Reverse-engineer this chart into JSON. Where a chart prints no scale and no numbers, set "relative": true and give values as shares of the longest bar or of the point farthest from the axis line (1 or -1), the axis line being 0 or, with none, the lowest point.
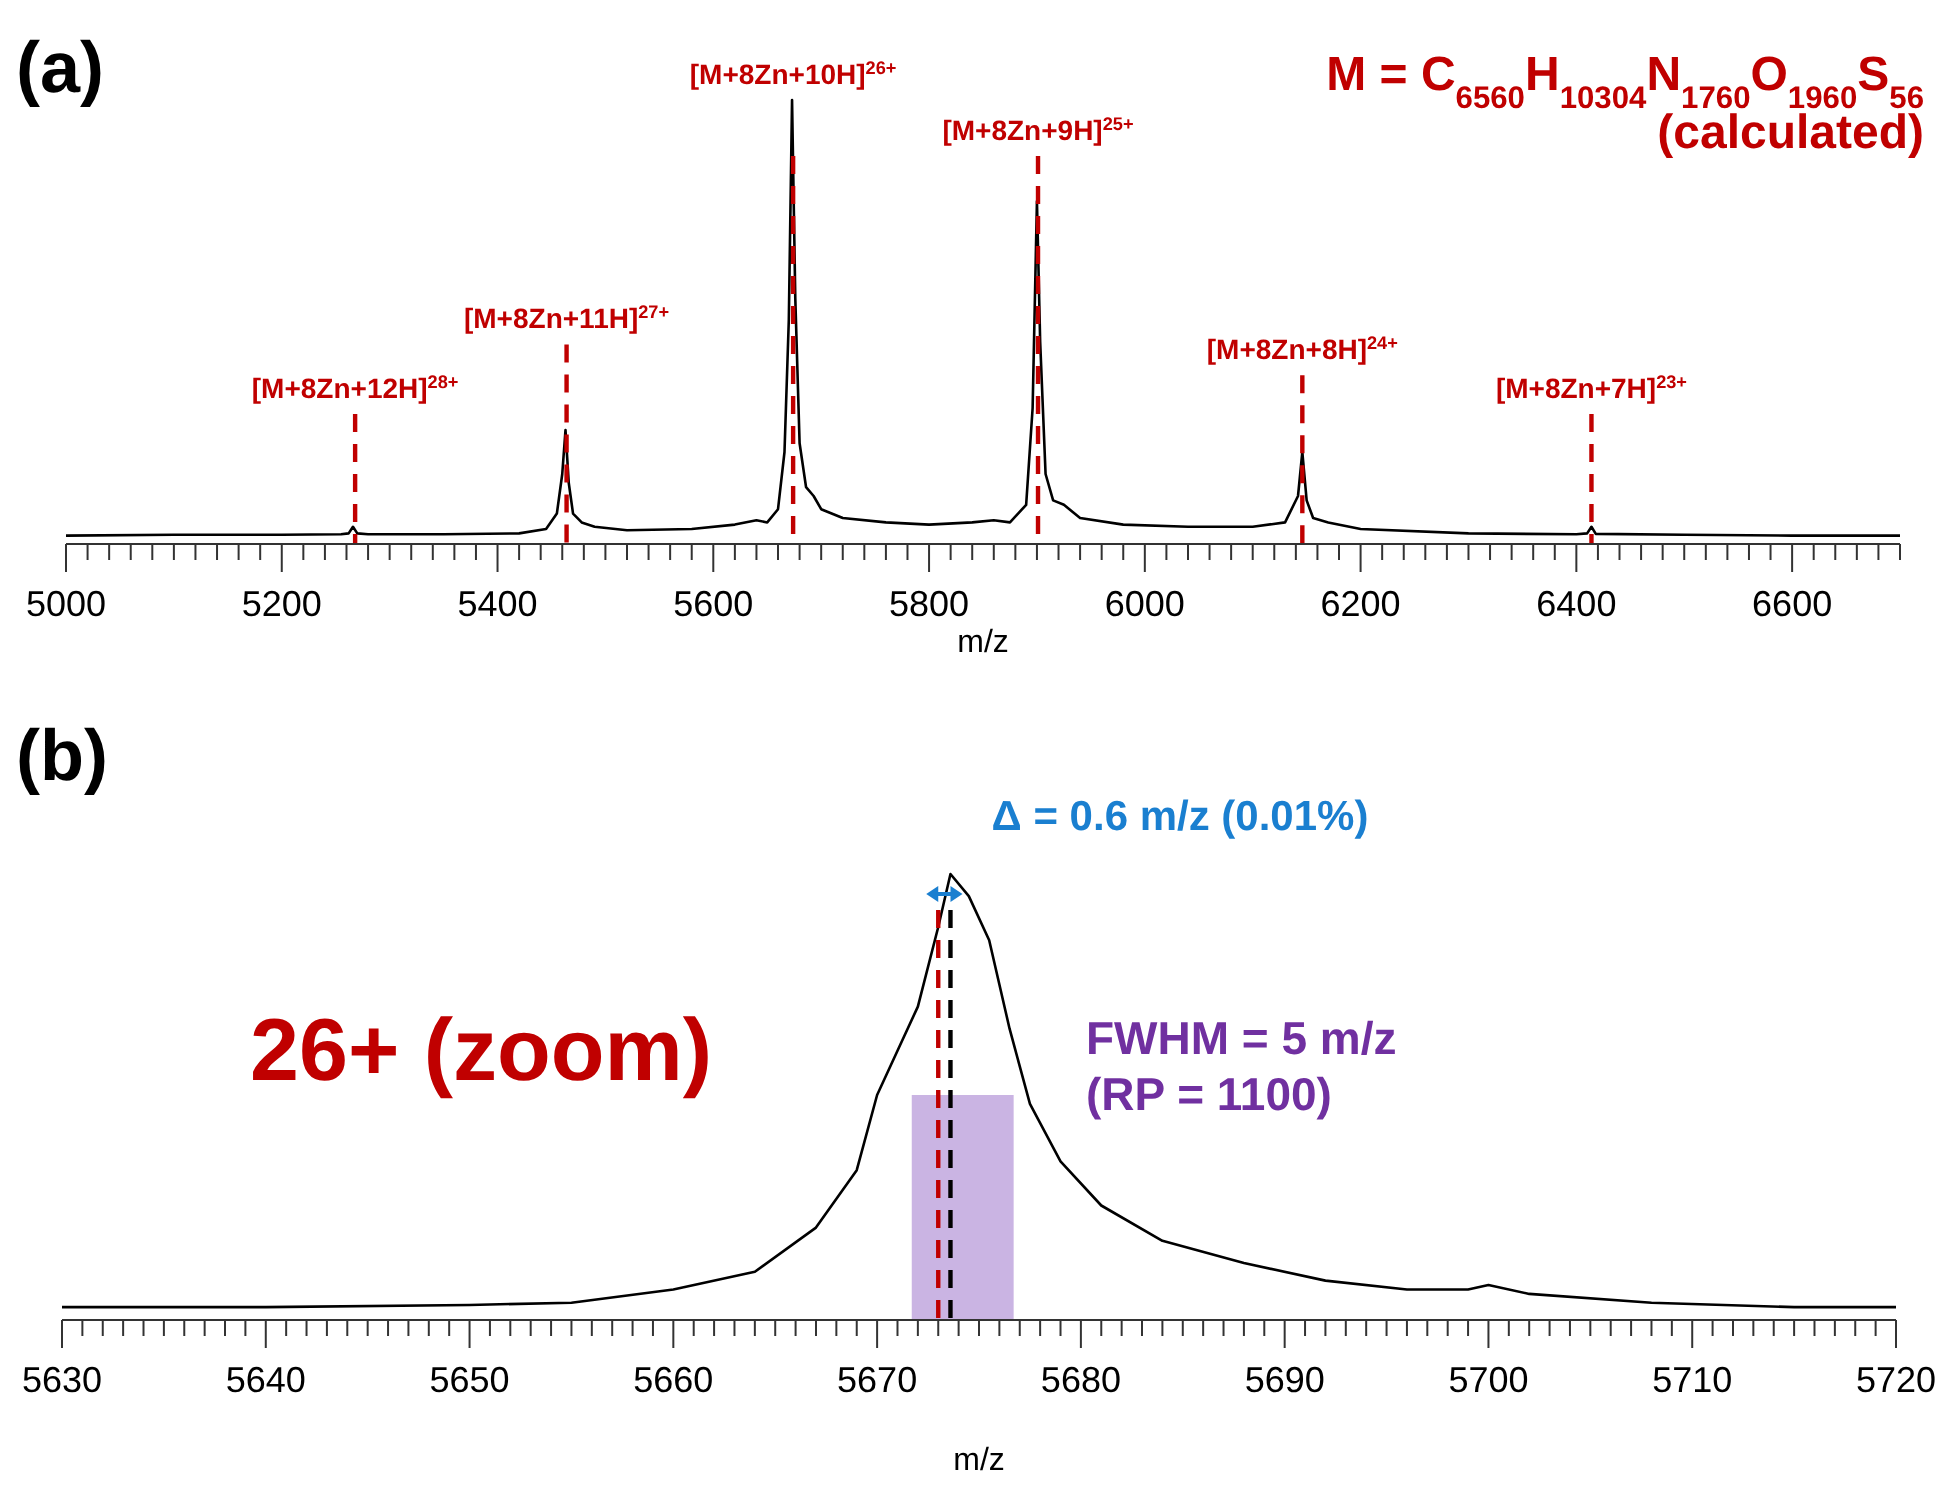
{
  "chart_data": [
    {
      "type": "line",
      "title": "(a)",
      "xlabel": "m/z",
      "relative": true,
      "tick_labels": "x",
      "grid": false,
      "marker": "none",
      "line_style": "solid",
      "annotations": [
        "M = C$_{6560}$H$_{10304}$N$_{1760}$O$_{1960}$S$_{56}$",
        "(calculated)"
      ],
      "xlim": [
        5000,
        6700
      ],
      "xticks": [
        5000,
        {
          "value": 5020,
          "label": null
        },
        {
          "value": 5040,
          "label": null
        },
        {
          "value": 5060,
          "label": null
        },
        {
          "value": 5080,
          "label": null
        },
        {
          "value": 5100,
          "label": null
        },
        {
          "value": 5120,
          "label": null
        },
        {
          "value": 5140,
          "label": null
        },
        {
          "value": 5160,
          "label": null
        },
        {
          "value": 5180,
          "label": null
        },
        5200,
        {
          "value": 5220,
          "label": null
        },
        {
          "value": 5240,
          "label": null
        },
        {
          "value": 5260,
          "label": null
        },
        {
          "value": 5280,
          "label": null
        },
        {
          "value": 5300,
          "label": null
        },
        {
          "value": 5320,
          "label": null
        },
        {
          "value": 5340,
          "label": null
        },
        {
          "value": 5360,
          "label": null
        },
        {
          "value": 5380,
          "label": null
        },
        5400,
        {
          "value": 5420,
          "label": null
        },
        {
          "value": 5440,
          "label": null
        },
        {
          "value": 5460,
          "label": null
        },
        {
          "value": 5480,
          "label": null
        },
        {
          "value": 5500,
          "label": null
        },
        {
          "value": 5520,
          "label": null
        },
        {
          "value": 5540,
          "label": null
        },
        {
          "value": 5560,
          "label": null
        },
        {
          "value": 5580,
          "label": null
        },
        5600,
        {
          "value": 5620,
          "label": null
        },
        {
          "value": 5640,
          "label": null
        },
        {
          "value": 5660,
          "label": null
        },
        {
          "value": 5680,
          "label": null
        },
        {
          "value": 5700,
          "label": null
        },
        {
          "value": 5720,
          "label": null
        },
        {
          "value": 5740,
          "label": null
        },
        {
          "value": 5760,
          "label": null
        },
        {
          "value": 5780,
          "label": null
        },
        5800,
        {
          "value": 5820,
          "label": null
        },
        {
          "value": 5840,
          "label": null
        },
        {
          "value": 5860,
          "label": null
        },
        {
          "value": 5880,
          "label": null
        },
        {
          "value": 5900,
          "label": null
        },
        {
          "value": 5920,
          "label": null
        },
        {
          "value": 5940,
          "label": null
        },
        {
          "value": 5960,
          "label": null
        },
        {
          "value": 5980,
          "label": null
        },
        6000,
        {
          "value": 6020,
          "label": null
        },
        {
          "value": 6040,
          "label": null
        },
        {
          "value": 6060,
          "label": null
        },
        {
          "value": 6080,
          "label": null
        },
        {
          "value": 6100,
          "label": null
        },
        {
          "value": 6120,
          "label": null
        },
        {
          "value": 6140,
          "label": null
        },
        {
          "value": 6160,
          "label": null
        },
        {
          "value": 6180,
          "label": null
        },
        6200,
        {
          "value": 6220,
          "label": null
        },
        {
          "value": 6240,
          "label": null
        },
        {
          "value": 6260,
          "label": null
        },
        {
          "value": 6280,
          "label": null
        },
        {
          "value": 6300,
          "label": null
        },
        {
          "value": 6320,
          "label": null
        },
        {
          "value": 6340,
          "label": null
        },
        {
          "value": 6360,
          "label": null
        },
        {
          "value": 6380,
          "label": null
        },
        6400,
        {
          "value": 6420,
          "label": null
        },
        {
          "value": 6440,
          "label": null
        },
        {
          "value": 6460,
          "label": null
        },
        {
          "value": 6480,
          "label": null
        },
        {
          "value": 6500,
          "label": null
        },
        {
          "value": 6520,
          "label": null
        },
        {
          "value": 6540,
          "label": null
        },
        {
          "value": 6560,
          "label": null
        },
        {
          "value": 6580,
          "label": null
        },
        6600,
        {
          "value": 6620,
          "label": null
        },
        {
          "value": 6640,
          "label": null
        },
        {
          "value": 6660,
          "label": null
        },
        {
          "value": 6680,
          "label": null
        },
        {
          "value": 6700,
          "label": null
        }
      ],
      "series": [
        {
          "color": "#000000",
          "x": [
            5000,
            5100,
            5200,
            5255,
            5262,
            5266,
            5270,
            5280,
            5350,
            5420,
            5445,
            5455,
            5460,
            5463,
            5466,
            5470,
            5478,
            5490,
            5520,
            5580,
            5620,
            5640,
            5650,
            5660,
            5666,
            5670,
            5673,
            5676,
            5680,
            5686,
            5693,
            5700,
            5720,
            5760,
            5800,
            5840,
            5860,
            5875,
            5890,
            5896,
            5900,
            5903,
            5908,
            5915,
            5925,
            5940,
            5980,
            6040,
            6100,
            6130,
            6142,
            6146,
            6150,
            6156,
            6170,
            6200,
            6300,
            6400,
            6410,
            6414,
            6418,
            6500,
            6600,
            6700
          ],
          "values": [
            0.01,
            0.012,
            0.012,
            0.013,
            0.015,
            0.03,
            0.015,
            0.013,
            0.013,
            0.015,
            0.025,
            0.06,
            0.15,
            0.25,
            0.13,
            0.06,
            0.04,
            0.03,
            0.022,
            0.025,
            0.035,
            0.045,
            0.04,
            0.07,
            0.2,
            0.5,
            1.0,
            0.55,
            0.22,
            0.12,
            0.1,
            0.07,
            0.05,
            0.04,
            0.035,
            0.04,
            0.045,
            0.04,
            0.08,
            0.3,
            0.77,
            0.45,
            0.15,
            0.09,
            0.08,
            0.05,
            0.035,
            0.03,
            0.03,
            0.04,
            0.1,
            0.2,
            0.09,
            0.05,
            0.04,
            0.025,
            0.015,
            0.013,
            0.015,
            0.03,
            0.014,
            0.012,
            0.01,
            0.01
          ]
        }
      ],
      "ref_lines": [
        {
          "axis": "x",
          "value": 5268,
          "label": "[M+8Zn+12H]$^{28+}$",
          "color": "#c00000",
          "line_style": "dashed"
        },
        {
          "axis": "x",
          "value": 5464,
          "label": "[M+8Zn+11H]$^{27+}$",
          "color": "#c00000",
          "line_style": "dashed"
        },
        {
          "axis": "x",
          "value": 5674,
          "label": "[M+8Zn+10H]$^{26+}$",
          "color": "#c00000",
          "line_style": "dashed"
        },
        {
          "axis": "x",
          "value": 5901,
          "label": "[M+8Zn+9H]$^{25+}$",
          "color": "#c00000",
          "line_style": "dashed"
        },
        {
          "axis": "x",
          "value": 6146,
          "label": "[M+8Zn+8H]$^{24+}$",
          "color": "#c00000",
          "line_style": "dashed"
        },
        {
          "axis": "x",
          "value": 6414,
          "label": "[M+8Zn+7H]$^{23+}$",
          "color": "#c00000",
          "line_style": "dashed"
        }
      ]
    },
    {
      "type": "line",
      "title": "(b)",
      "xlabel": "m/z",
      "relative": true,
      "tick_labels": "x",
      "grid": false,
      "marker": "none",
      "line_style": "solid",
      "annotations": [
        "Δ = 0.6 m/z (0.01%)",
        "26+ (zoom)",
        "FWHM = 5 m/z",
        "(RP = 1100)"
      ],
      "xlim": [
        5630,
        5720
      ],
      "xticks": [
        5630,
        {
          "value": 5631,
          "label": null
        },
        {
          "value": 5632,
          "label": null
        },
        {
          "value": 5633,
          "label": null
        },
        {
          "value": 5634,
          "label": null
        },
        {
          "value": 5635,
          "label": null
        },
        {
          "value": 5636,
          "label": null
        },
        {
          "value": 5637,
          "label": null
        },
        {
          "value": 5638,
          "label": null
        },
        {
          "value": 5639,
          "label": null
        },
        5640,
        {
          "value": 5641,
          "label": null
        },
        {
          "value": 5642,
          "label": null
        },
        {
          "value": 5643,
          "label": null
        },
        {
          "value": 5644,
          "label": null
        },
        {
          "value": 5645,
          "label": null
        },
        {
          "value": 5646,
          "label": null
        },
        {
          "value": 5647,
          "label": null
        },
        {
          "value": 5648,
          "label": null
        },
        {
          "value": 5649,
          "label": null
        },
        5650,
        {
          "value": 5651,
          "label": null
        },
        {
          "value": 5652,
          "label": null
        },
        {
          "value": 5653,
          "label": null
        },
        {
          "value": 5654,
          "label": null
        },
        {
          "value": 5655,
          "label": null
        },
        {
          "value": 5656,
          "label": null
        },
        {
          "value": 5657,
          "label": null
        },
        {
          "value": 5658,
          "label": null
        },
        {
          "value": 5659,
          "label": null
        },
        5660,
        {
          "value": 5661,
          "label": null
        },
        {
          "value": 5662,
          "label": null
        },
        {
          "value": 5663,
          "label": null
        },
        {
          "value": 5664,
          "label": null
        },
        {
          "value": 5665,
          "label": null
        },
        {
          "value": 5666,
          "label": null
        },
        {
          "value": 5667,
          "label": null
        },
        {
          "value": 5668,
          "label": null
        },
        {
          "value": 5669,
          "label": null
        },
        5670,
        {
          "value": 5671,
          "label": null
        },
        {
          "value": 5672,
          "label": null
        },
        {
          "value": 5673,
          "label": null
        },
        {
          "value": 5674,
          "label": null
        },
        {
          "value": 5675,
          "label": null
        },
        {
          "value": 5676,
          "label": null
        },
        {
          "value": 5677,
          "label": null
        },
        {
          "value": 5678,
          "label": null
        },
        {
          "value": 5679,
          "label": null
        },
        5680,
        {
          "value": 5681,
          "label": null
        },
        {
          "value": 5682,
          "label": null
        },
        {
          "value": 5683,
          "label": null
        },
        {
          "value": 5684,
          "label": null
        },
        {
          "value": 5685,
          "label": null
        },
        {
          "value": 5686,
          "label": null
        },
        {
          "value": 5687,
          "label": null
        },
        {
          "value": 5688,
          "label": null
        },
        {
          "value": 5689,
          "label": null
        },
        5690,
        {
          "value": 5691,
          "label": null
        },
        {
          "value": 5692,
          "label": null
        },
        {
          "value": 5693,
          "label": null
        },
        {
          "value": 5694,
          "label": null
        },
        {
          "value": 5695,
          "label": null
        },
        {
          "value": 5696,
          "label": null
        },
        {
          "value": 5697,
          "label": null
        },
        {
          "value": 5698,
          "label": null
        },
        {
          "value": 5699,
          "label": null
        },
        5700,
        {
          "value": 5701,
          "label": null
        },
        {
          "value": 5702,
          "label": null
        },
        {
          "value": 5703,
          "label": null
        },
        {
          "value": 5704,
          "label": null
        },
        {
          "value": 5705,
          "label": null
        },
        {
          "value": 5706,
          "label": null
        },
        {
          "value": 5707,
          "label": null
        },
        {
          "value": 5708,
          "label": null
        },
        {
          "value": 5709,
          "label": null
        },
        5710,
        {
          "value": 5711,
          "label": null
        },
        {
          "value": 5712,
          "label": null
        },
        {
          "value": 5713,
          "label": null
        },
        {
          "value": 5714,
          "label": null
        },
        {
          "value": 5715,
          "label": null
        },
        {
          "value": 5716,
          "label": null
        },
        {
          "value": 5717,
          "label": null
        },
        {
          "value": 5718,
          "label": null
        },
        {
          "value": 5719,
          "label": null
        },
        5720
      ],
      "series": [
        {
          "color": "#000000",
          "x": [
            5630,
            5640,
            5650,
            5655,
            5660,
            5664,
            5667,
            5669,
            5670,
            5671,
            5672,
            5673,
            5673.6,
            5674.5,
            5675.5,
            5676.5,
            5677.5,
            5679,
            5681,
            5684,
            5688,
            5692,
            5696,
            5699,
            5700,
            5702,
            5708,
            5715,
            5720
          ],
          "values": [
            0.02,
            0.02,
            0.025,
            0.03,
            0.06,
            0.1,
            0.2,
            0.33,
            0.5,
            0.6,
            0.7,
            0.88,
            1.0,
            0.95,
            0.85,
            0.65,
            0.48,
            0.35,
            0.25,
            0.17,
            0.12,
            0.08,
            0.06,
            0.06,
            0.07,
            0.05,
            0.03,
            0.02,
            0.02
          ]
        }
      ],
      "bands": [
        {
          "axis": "x",
          "from": 5671.7,
          "to": 5676.7,
          "color": "#c4ace0"
        }
      ],
      "ref_lines": [
        {
          "axis": "x",
          "value": 5673.0,
          "color": "#c00000",
          "line_style": "dashed"
        },
        {
          "axis": "x",
          "value": 5673.6,
          "color": "#000000",
          "line_style": "dashed"
        }
      ]
    }
  ]
}
